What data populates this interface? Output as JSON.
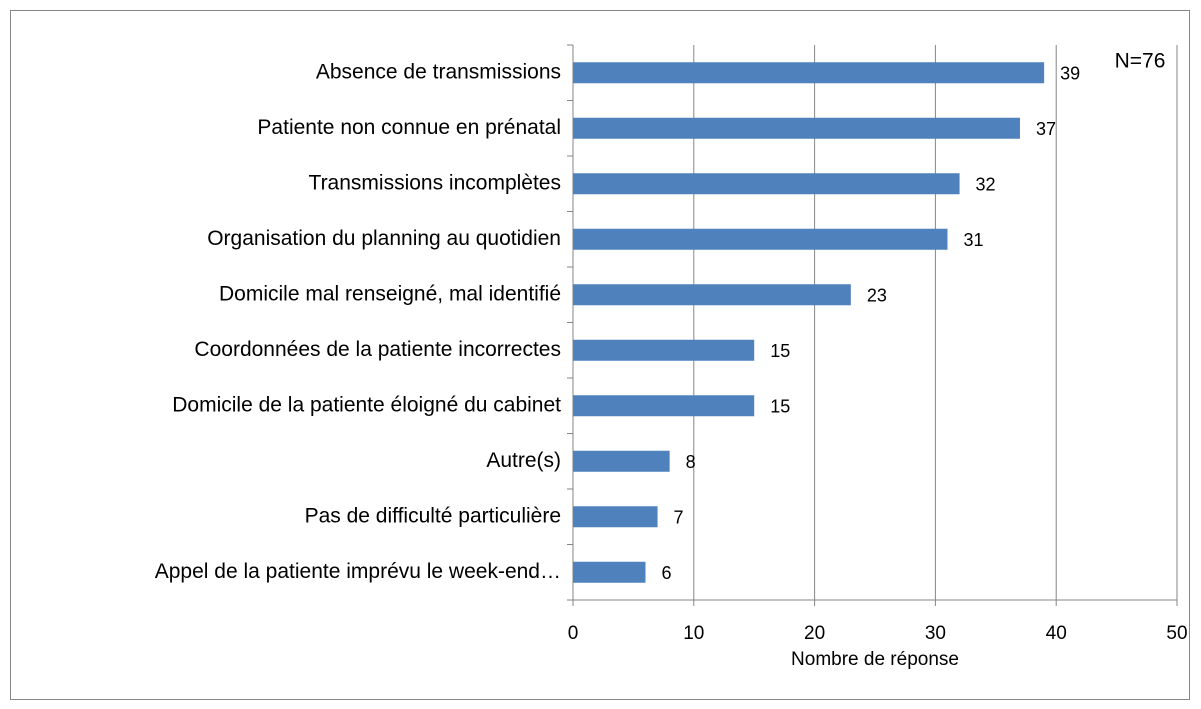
{
  "chart_data": {
    "type": "barh",
    "categories": [
      "Absence de transmissions",
      "Patiente non connue en prénatal",
      "Transmissions incomplètes",
      "Organisation du planning au quotidien",
      "Domicile mal renseigné, mal identifié",
      "Coordonnées de la patiente incorrectes",
      "Domicile de la patiente éloigné du cabinet",
      "Autre(s)",
      "Pas de difficulté particulière",
      "Appel de la patiente imprévu le week-end…"
    ],
    "values": [
      39,
      37,
      32,
      31,
      23,
      15,
      15,
      8,
      7,
      6
    ],
    "color": "#4f81bd",
    "xlim": [
      0,
      50
    ],
    "xticks": [
      0,
      10,
      20,
      30,
      40,
      50
    ],
    "xlabel": "Nombre de réponse",
    "annotation": "N=76",
    "grid": true
  }
}
